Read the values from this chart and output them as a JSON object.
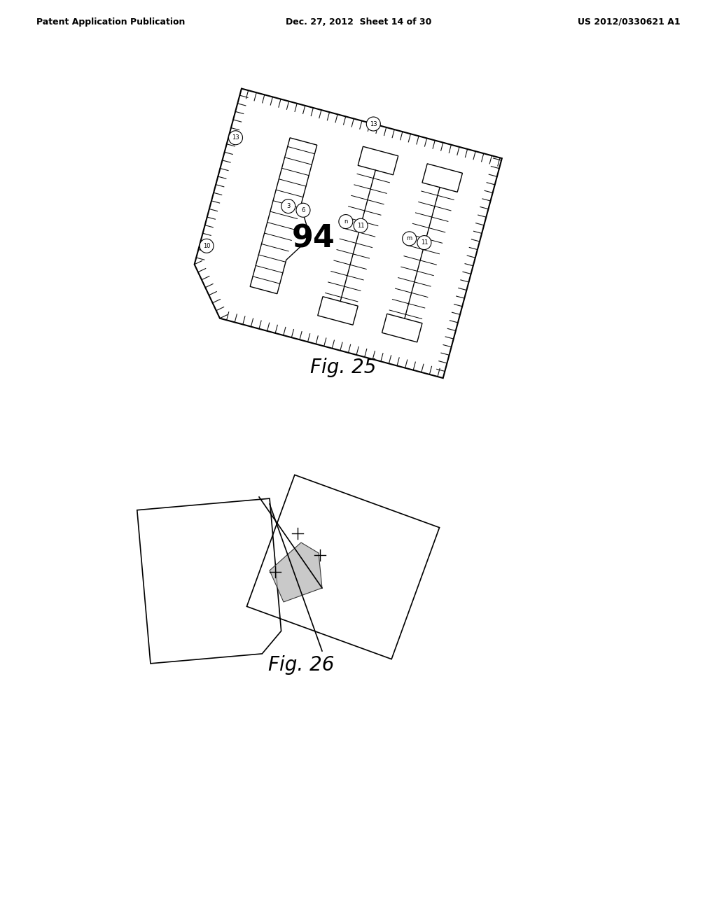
{
  "bg_color": "#ffffff",
  "header_left": "Patent Application Publication",
  "header_mid": "Dec. 27, 2012  Sheet 14 of 30",
  "header_right": "US 2012/0330621 A1",
  "fig25_label": "Fig. 25",
  "fig26_label": "Fig. 26",
  "label_94": "94"
}
